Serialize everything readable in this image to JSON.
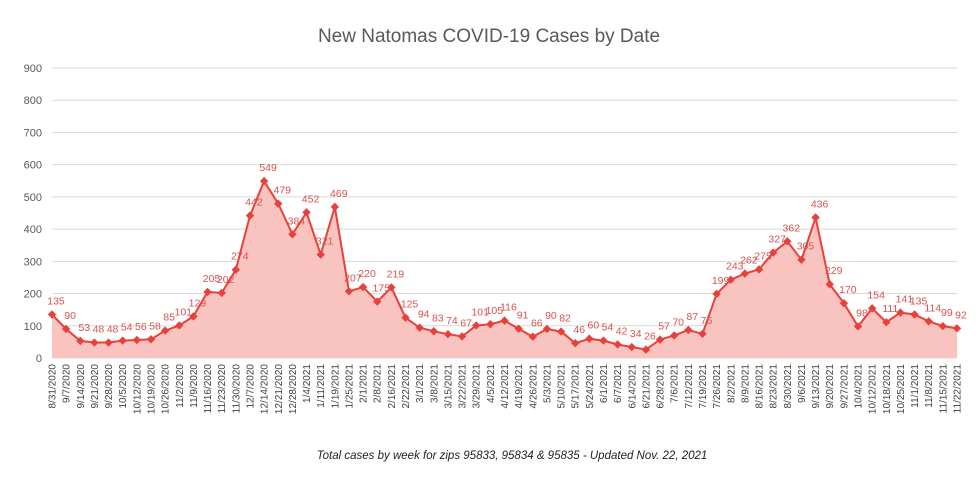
{
  "chart_data": {
    "type": "area",
    "title": "New Natomas COVID-19 Cases by Date",
    "caption": "Total cases by week for zips 95833, 95834 & 95835 - Updated Nov. 22, 2021",
    "xlabel": "",
    "ylabel": "",
    "ylim": [
      0,
      900
    ],
    "yticks": [
      "0",
      "100",
      "200",
      "300",
      "400",
      "500",
      "600",
      "700",
      "800",
      "900"
    ],
    "grid": true,
    "legend": "none",
    "colors": {
      "line": "#e8413b",
      "fill": "#f9c4c0",
      "label": "#d9534f"
    },
    "categories": [
      "8/31/2020",
      "9/7/2020",
      "9/14/2020",
      "9/21/2020",
      "9/28/2020",
      "10/5/2020",
      "10/12/2020",
      "10/19/2020",
      "10/26/2020",
      "11/2/2020",
      "11/9/2020",
      "11/16/2020",
      "11/23/2020",
      "11/30/2020",
      "12/7/2020",
      "12/14/2020",
      "12/21/2020",
      "12/28/2020",
      "1/4/2021",
      "1/11/2021",
      "1/19/2021",
      "1/25/2021",
      "2/1/2021",
      "2/8/2021",
      "2/16/2021",
      "2/22/2021",
      "3/1/2021",
      "3/8/2021",
      "3/15/2021",
      "3/22/2021",
      "3/29/2021",
      "4/5/2021",
      "4/12/2021",
      "4/19/2021",
      "4/26/2021",
      "5/3/2021",
      "5/10/2021",
      "5/17/2021",
      "5/24/2021",
      "6/1/2021",
      "6/7/2021",
      "6/14/2021",
      "6/21/2021",
      "6/28/2021",
      "7/6/2021",
      "7/12/2021",
      "7/19/2021",
      "7/26/2021",
      "8/2/2021",
      "8/9/2021",
      "8/16/2021",
      "8/23/2021",
      "8/30/2021",
      "9/6/2021",
      "9/13/2021",
      "9/20/2021",
      "9/27/2021",
      "10/4/2021",
      "10/12/2021",
      "10/18/2021",
      "10/25/2021",
      "11/1/2021",
      "11/8/2021",
      "11/15/2021",
      "11/22/2021"
    ],
    "values": [
      135,
      90,
      53,
      48,
      48,
      54,
      56,
      58,
      85,
      101,
      129,
      205,
      202,
      274,
      442,
      549,
      479,
      384,
      452,
      321,
      469,
      207,
      220,
      175,
      219,
      125,
      94,
      83,
      74,
      67,
      101,
      105,
      116,
      91,
      66,
      90,
      82,
      46,
      60,
      54,
      42,
      34,
      26,
      57,
      70,
      87,
      75,
      199,
      243,
      262,
      275,
      327,
      362,
      305,
      436,
      229,
      170,
      98,
      154,
      111,
      141,
      135,
      114,
      99,
      92
    ]
  }
}
